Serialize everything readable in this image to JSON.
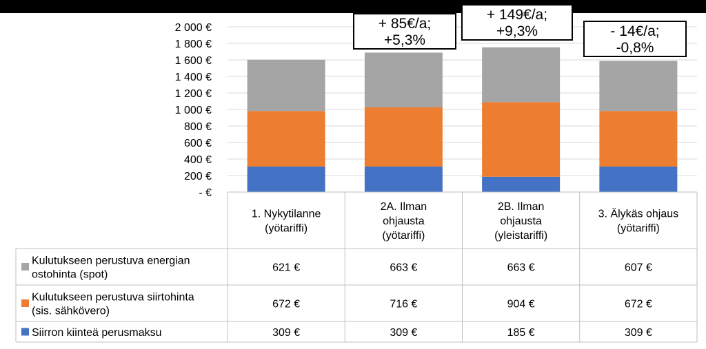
{
  "chart_data": {
    "type": "bar",
    "stacked": true,
    "categories": [
      [
        "1. Nykytilanne",
        "(yötariffi)"
      ],
      [
        "2A. Ilman",
        "ohjausta",
        "(yötariffi)"
      ],
      [
        "2B. Ilman",
        "ohjausta",
        "(yleistariffi)"
      ],
      [
        "3. Älykäs ohjaus",
        "(yötariffi)"
      ]
    ],
    "series": [
      {
        "name": [
          "Siirron kiinteä perusmaksu"
        ],
        "color": "#4472C4",
        "values": [
          309,
          309,
          185,
          309
        ],
        "labels": [
          "309 €",
          "309 €",
          "185 €",
          "309 €"
        ]
      },
      {
        "name": [
          "Kulutukseen perustuva siirtohinta",
          "(sis. sähkövero)"
        ],
        "color": "#ED7D31",
        "values": [
          672,
          716,
          904,
          672
        ],
        "labels": [
          "672 €",
          "716 €",
          "904 €",
          "672 €"
        ]
      },
      {
        "name": [
          "Kulutukseen perustuva energian",
          "ostohinta (spot)"
        ],
        "color": "#A5A5A5",
        "values": [
          621,
          663,
          663,
          607
        ],
        "labels": [
          "621 €",
          "663 €",
          "663 €",
          "607 €"
        ]
      }
    ],
    "ylim": [
      0,
      2000
    ],
    "yticks": [
      0,
      200,
      400,
      600,
      800,
      1000,
      1200,
      1400,
      1600,
      1800,
      2000
    ],
    "ytick_labels": [
      "-  €",
      "200 €",
      "400 €",
      "600 €",
      "800 €",
      "1 000 €",
      "1 200 €",
      "1 400 €",
      "1 600 €",
      "1 800 €",
      "2 000 €"
    ],
    "grid": true,
    "data_table": true,
    "annotations": [
      {
        "category_index": 1,
        "lines": [
          "+ 85€/a;",
          "+5,3%"
        ]
      },
      {
        "category_index": 2,
        "lines": [
          "+ 149€/a;",
          "+9,3%"
        ]
      },
      {
        "category_index": 3,
        "lines": [
          "- 14€/a;",
          "-0,8%"
        ]
      }
    ]
  }
}
